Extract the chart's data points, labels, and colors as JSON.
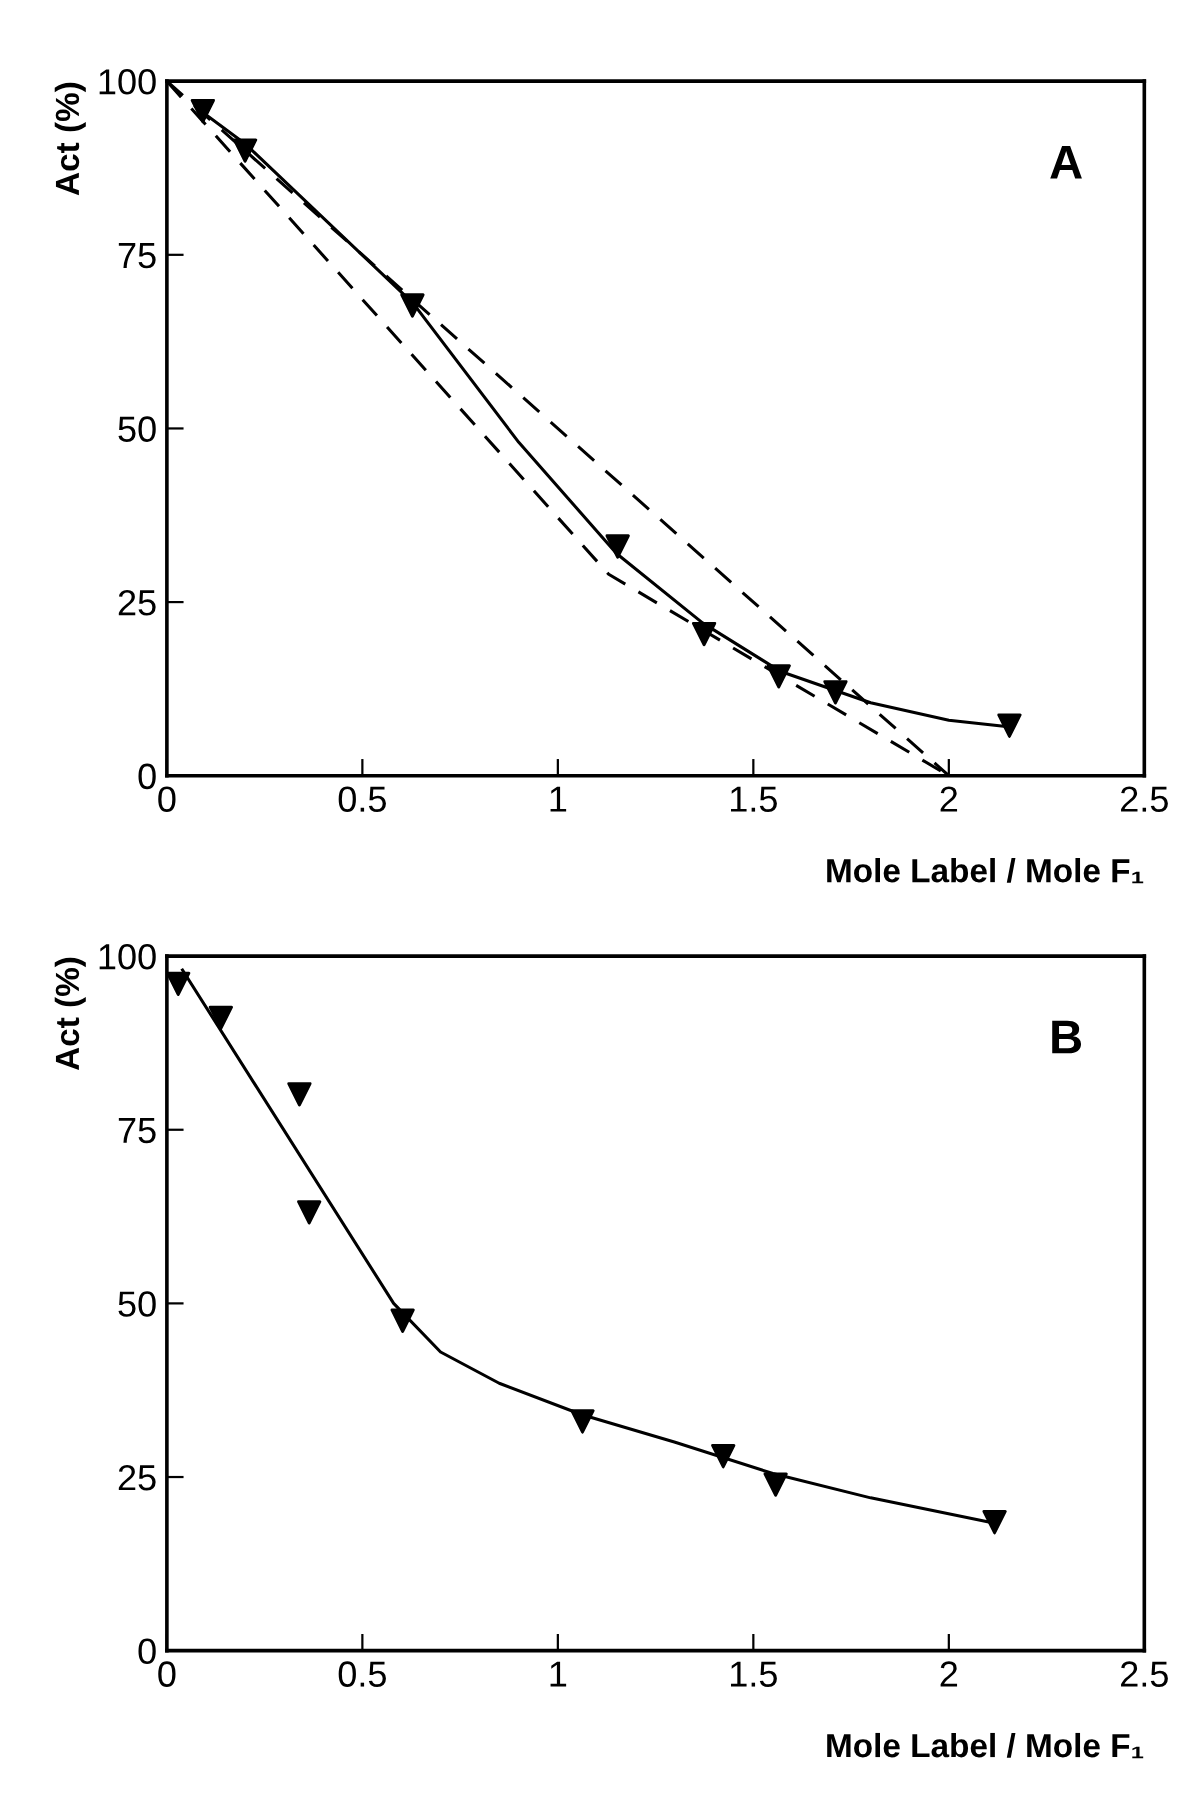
{
  "chart_data": [
    {
      "type": "scatter",
      "ylabel": "Act (%)",
      "xlabel": "Mole Label / Mole F₁",
      "annotations": [
        "A"
      ],
      "xlim": [
        0,
        2.5
      ],
      "ylim": [
        0,
        100
      ],
      "xticks": [
        0,
        0.5,
        1,
        1.5,
        2,
        2.5
      ],
      "yticks": [
        0,
        25,
        50,
        75,
        100
      ],
      "grid": false,
      "legend": false,
      "series": [
        {
          "marker": "triangle",
          "color": "#000000",
          "x": [
            0.092,
            0.2,
            0.628,
            1.153,
            1.374,
            1.565,
            1.71,
            2.155
          ],
          "values": [
            95.7,
            90,
            67.7,
            33,
            20.4,
            14.3,
            12,
            7.2
          ]
        },
        {
          "type": "line",
          "marker": "none",
          "line_style": "solid",
          "color": "#000000",
          "x": [
            0.08,
            0.2,
            0.63,
            0.9,
            1.15,
            1.37,
            1.57,
            1.8,
            2.0,
            2.16
          ],
          "values": [
            96,
            91,
            68,
            48,
            32,
            22,
            15,
            10.5,
            8,
            7
          ]
        },
        {
          "type": "line",
          "marker": "none",
          "line_style": "dashed",
          "color": "#000000",
          "x": [
            0,
            2
          ],
          "values": [
            100,
            0
          ]
        },
        {
          "type": "line",
          "marker": "none",
          "line_style": "dashed",
          "color": "#000000",
          "x": [
            0,
            1.13,
            2
          ],
          "values": [
            100,
            29,
            0
          ]
        }
      ]
    },
    {
      "type": "scatter",
      "ylabel": "Act (%)",
      "xlabel": "Mole Label / Mole F₁",
      "annotations": [
        "B"
      ],
      "xlim": [
        0,
        2.5
      ],
      "ylim": [
        0,
        100
      ],
      "xticks": [
        0,
        0.5,
        1,
        1.5,
        2,
        2.5
      ],
      "yticks": [
        0,
        25,
        50,
        75,
        100
      ],
      "grid": false,
      "legend": false,
      "series": [
        {
          "marker": "triangle",
          "color": "#000000",
          "x": [
            0.029,
            0.138,
            0.339,
            0.364,
            0.603,
            1.063,
            1.423,
            1.557,
            2.117
          ],
          "values": [
            96,
            91.1,
            80.1,
            63.1,
            47.5,
            33,
            28,
            23.9,
            18.5
          ]
        },
        {
          "type": "line",
          "marker": "none",
          "line_style": "solid",
          "color": "#000000",
          "x": [
            0.04,
            0.58,
            0.7,
            0.85,
            1.06,
            1.3,
            1.55,
            1.8,
            2.12
          ],
          "values": [
            98,
            50,
            43,
            38.5,
            34,
            30,
            25.5,
            22,
            18.3
          ]
        }
      ]
    }
  ]
}
